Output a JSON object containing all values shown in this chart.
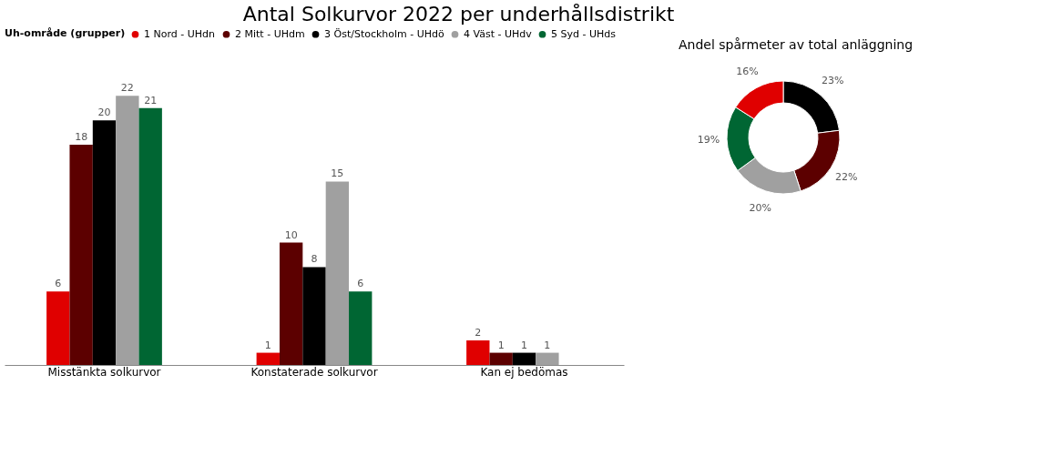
{
  "chart_data": [
    {
      "type": "bar",
      "title": "Antal Solkurvor 2022 per underhållsdistrikt",
      "legend_title": "Uh-område (grupper)",
      "legend": "top",
      "grid": false,
      "tick_labels": "x",
      "data_labels": true,
      "categories": [
        "Misstänkta solkurvor",
        "Konstaterade solkurvor",
        "Kan ej bedömas"
      ],
      "series": [
        {
          "name": "1 Nord - UHdn",
          "color": "#e00000",
          "values": [
            6,
            1,
            2
          ]
        },
        {
          "name": "2 Mitt - UHdm",
          "color": "#5c0000",
          "values": [
            18,
            10,
            1
          ]
        },
        {
          "name": "3 Öst/Stockholm - UHdö",
          "color": "#000000",
          "values": [
            20,
            8,
            1
          ]
        },
        {
          "name": "4 Väst - UHdv",
          "color": "#a0a0a0",
          "values": [
            22,
            15,
            1
          ]
        },
        {
          "name": "5 Syd - UHds",
          "color": "#006633",
          "values": [
            21,
            6,
            null
          ]
        }
      ]
    },
    {
      "type": "donut",
      "title": "Andel spårmeter av total anläggning",
      "categories": [
        null,
        null,
        null,
        null,
        null
      ],
      "values": [
        23,
        22,
        20,
        19,
        16
      ],
      "value_labels": [
        "23%",
        "22%",
        "20%",
        "19%",
        "16%"
      ],
      "colors": [
        "#000000",
        "#5c0000",
        "#a0a0a0",
        "#006633",
        "#e00000"
      ]
    }
  ]
}
